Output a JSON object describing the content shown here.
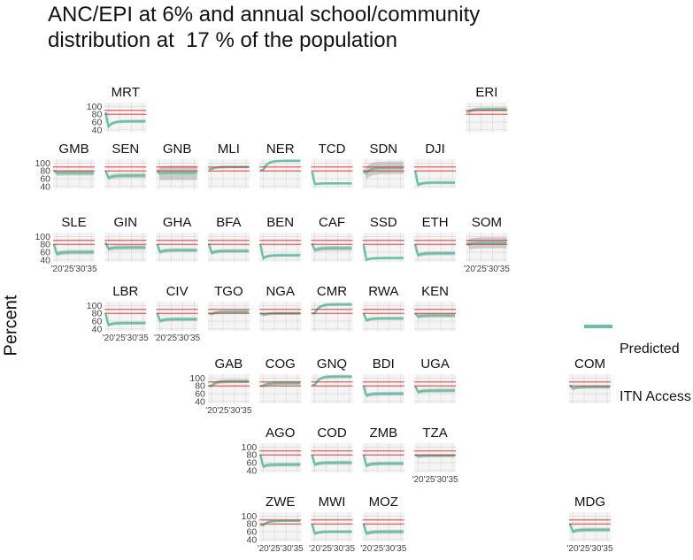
{
  "title_lines": [
    "ANC/EPI at 6% and annual school/community",
    "distribution at  17 % of the population"
  ],
  "y_axis_label": "Percent",
  "legend": {
    "label_lines": [
      "Predicted",
      "ITN Access"
    ]
  },
  "colors": {
    "series_line": "#66c2a5",
    "series_band": "#a9a9a9",
    "reference_line": "#e41a1c",
    "grid": "#d9d9d9",
    "panel_bg": "#f4f4f4"
  },
  "chart_data": {
    "type": "line",
    "facet": "geo-grid small multiples",
    "x_ticks": [
      "'20",
      "'25",
      "'30",
      "'35"
    ],
    "y_ticks": [
      100,
      80,
      60,
      40
    ],
    "ylim": [
      35,
      110
    ],
    "reference_lines": [
      80,
      90
    ],
    "series_name": "Predicted ITN Access",
    "panels": [
      {
        "code": "MRT",
        "row": 0,
        "col": 1,
        "start": 85,
        "dip": 48,
        "plateau": 62,
        "band": 4,
        "show_y": true,
        "show_x": false
      },
      {
        "code": "ERI",
        "row": 0,
        "col": 8,
        "start": 85,
        "dip": 88,
        "plateau": 93,
        "band": 5,
        "show_y": false,
        "show_x": false
      },
      {
        "code": "GMB",
        "row": 1,
        "col": 0,
        "start": 82,
        "dip": 74,
        "plateau": 75,
        "band": 7,
        "show_y": true,
        "show_x": false
      },
      {
        "code": "SEN",
        "row": 1,
        "col": 1,
        "start": 80,
        "dip": 62,
        "plateau": 68,
        "band": 6,
        "show_y": false,
        "show_x": false
      },
      {
        "code": "GNB",
        "row": 1,
        "col": 2,
        "start": 80,
        "dip": 74,
        "plateau": 75,
        "band": 18,
        "show_y": false,
        "show_x": false
      },
      {
        "code": "MLI",
        "row": 1,
        "col": 3,
        "start": 85,
        "dip": 85,
        "plateau": 90,
        "band": 3,
        "show_y": false,
        "show_x": false
      },
      {
        "code": "NER",
        "row": 1,
        "col": 4,
        "start": 82,
        "dip": 82,
        "plateau": 106,
        "band": 3,
        "show_y": false,
        "show_x": false
      },
      {
        "code": "TCD",
        "row": 1,
        "col": 5,
        "start": 78,
        "dip": 46,
        "plateau": 48,
        "band": 3,
        "show_y": false,
        "show_x": false
      },
      {
        "code": "SDN",
        "row": 1,
        "col": 6,
        "start": 80,
        "dip": 74,
        "plateau": 88,
        "band": 16,
        "show_y": false,
        "show_x": false
      },
      {
        "code": "DJI",
        "row": 1,
        "col": 7,
        "start": 80,
        "dip": 44,
        "plateau": 50,
        "band": 4,
        "show_y": false,
        "show_x": false
      },
      {
        "code": "SLE",
        "row": 2,
        "col": 0,
        "start": 80,
        "dip": 55,
        "plateau": 60,
        "band": 6,
        "show_y": true,
        "show_x": true
      },
      {
        "code": "GIN",
        "row": 2,
        "col": 1,
        "start": 85,
        "dip": 68,
        "plateau": 72,
        "band": 6,
        "show_y": false,
        "show_x": false
      },
      {
        "code": "GHA",
        "row": 2,
        "col": 2,
        "start": 80,
        "dip": 60,
        "plateau": 65,
        "band": 5,
        "show_y": false,
        "show_x": false
      },
      {
        "code": "BFA",
        "row": 2,
        "col": 3,
        "start": 82,
        "dip": 58,
        "plateau": 63,
        "band": 5,
        "show_y": false,
        "show_x": false
      },
      {
        "code": "BEN",
        "row": 2,
        "col": 4,
        "start": 80,
        "dip": 44,
        "plateau": 52,
        "band": 4,
        "show_y": false,
        "show_x": false
      },
      {
        "code": "CAF",
        "row": 2,
        "col": 5,
        "start": 82,
        "dip": 65,
        "plateau": 70,
        "band": 6,
        "show_y": false,
        "show_x": false
      },
      {
        "code": "SSD",
        "row": 2,
        "col": 6,
        "start": 78,
        "dip": 40,
        "plateau": 45,
        "band": 3,
        "show_y": false,
        "show_x": false
      },
      {
        "code": "ETH",
        "row": 2,
        "col": 7,
        "start": 80,
        "dip": 52,
        "plateau": 57,
        "band": 5,
        "show_y": false,
        "show_x": false
      },
      {
        "code": "SOM",
        "row": 2,
        "col": 8,
        "start": 82,
        "dip": 80,
        "plateau": 84,
        "band": 14,
        "show_y": false,
        "show_x": true
      },
      {
        "code": "LBR",
        "row": 3,
        "col": 1,
        "start": 80,
        "dip": 50,
        "plateau": 55,
        "band": 4,
        "show_y": true,
        "show_x": true
      },
      {
        "code": "CIV",
        "row": 3,
        "col": 2,
        "start": 80,
        "dip": 60,
        "plateau": 65,
        "band": 5,
        "show_y": false,
        "show_x": true
      },
      {
        "code": "TGO",
        "row": 3,
        "col": 3,
        "start": 80,
        "dip": 78,
        "plateau": 84,
        "band": 4,
        "show_y": false,
        "show_x": false
      },
      {
        "code": "NGA",
        "row": 3,
        "col": 4,
        "start": 80,
        "dip": 76,
        "plateau": 80,
        "band": 4,
        "show_y": false,
        "show_x": false
      },
      {
        "code": "CMR",
        "row": 3,
        "col": 5,
        "start": 80,
        "dip": 80,
        "plateau": 103,
        "band": 4,
        "show_y": false,
        "show_x": false
      },
      {
        "code": "RWA",
        "row": 3,
        "col": 6,
        "start": 80,
        "dip": 62,
        "plateau": 67,
        "band": 4,
        "show_y": false,
        "show_x": false
      },
      {
        "code": "KEN",
        "row": 3,
        "col": 7,
        "start": 80,
        "dip": 72,
        "plateau": 75,
        "band": 6,
        "show_y": false,
        "show_x": false
      },
      {
        "code": "GAB",
        "row": 4,
        "col": 3,
        "start": 80,
        "dip": 80,
        "plateau": 92,
        "band": 5,
        "show_y": true,
        "show_x": true
      },
      {
        "code": "COG",
        "row": 4,
        "col": 4,
        "start": 80,
        "dip": 80,
        "plateau": 87,
        "band": 5,
        "show_y": false,
        "show_x": false
      },
      {
        "code": "GNQ",
        "row": 4,
        "col": 5,
        "start": 82,
        "dip": 82,
        "plateau": 104,
        "band": 4,
        "show_y": false,
        "show_x": false
      },
      {
        "code": "BDI",
        "row": 4,
        "col": 6,
        "start": 80,
        "dip": 55,
        "plateau": 60,
        "band": 5,
        "show_y": false,
        "show_x": false
      },
      {
        "code": "UGA",
        "row": 4,
        "col": 7,
        "start": 80,
        "dip": 64,
        "plateau": 68,
        "band": 5,
        "show_y": false,
        "show_x": false
      },
      {
        "code": "COM",
        "row": 4,
        "col": 10,
        "start": 82,
        "dip": 73,
        "plateau": 77,
        "band": 4,
        "show_y": false,
        "show_x": false
      },
      {
        "code": "AGO",
        "row": 5,
        "col": 4,
        "start": 80,
        "dip": 50,
        "plateau": 55,
        "band": 5,
        "show_y": true,
        "show_x": false
      },
      {
        "code": "COD",
        "row": 5,
        "col": 5,
        "start": 80,
        "dip": 55,
        "plateau": 60,
        "band": 5,
        "show_y": false,
        "show_x": false
      },
      {
        "code": "ZMB",
        "row": 5,
        "col": 6,
        "start": 80,
        "dip": 52,
        "plateau": 58,
        "band": 5,
        "show_y": false,
        "show_x": false
      },
      {
        "code": "TZA",
        "row": 5,
        "col": 7,
        "start": 80,
        "dip": 76,
        "plateau": 78,
        "band": 4,
        "show_y": false,
        "show_x": true
      },
      {
        "code": "ZWE",
        "row": 6,
        "col": 4,
        "start": 78,
        "dip": 76,
        "plateau": 88,
        "band": 3,
        "show_y": true,
        "show_x": true
      },
      {
        "code": "MWI",
        "row": 6,
        "col": 5,
        "start": 80,
        "dip": 55,
        "plateau": 60,
        "band": 4,
        "show_y": false,
        "show_x": true
      },
      {
        "code": "MOZ",
        "row": 6,
        "col": 6,
        "start": 80,
        "dip": 55,
        "plateau": 60,
        "band": 5,
        "show_y": false,
        "show_x": true
      },
      {
        "code": "MDG",
        "row": 6,
        "col": 10,
        "start": 80,
        "dip": 60,
        "plateau": 65,
        "band": 5,
        "show_y": false,
        "show_x": true
      }
    ]
  }
}
